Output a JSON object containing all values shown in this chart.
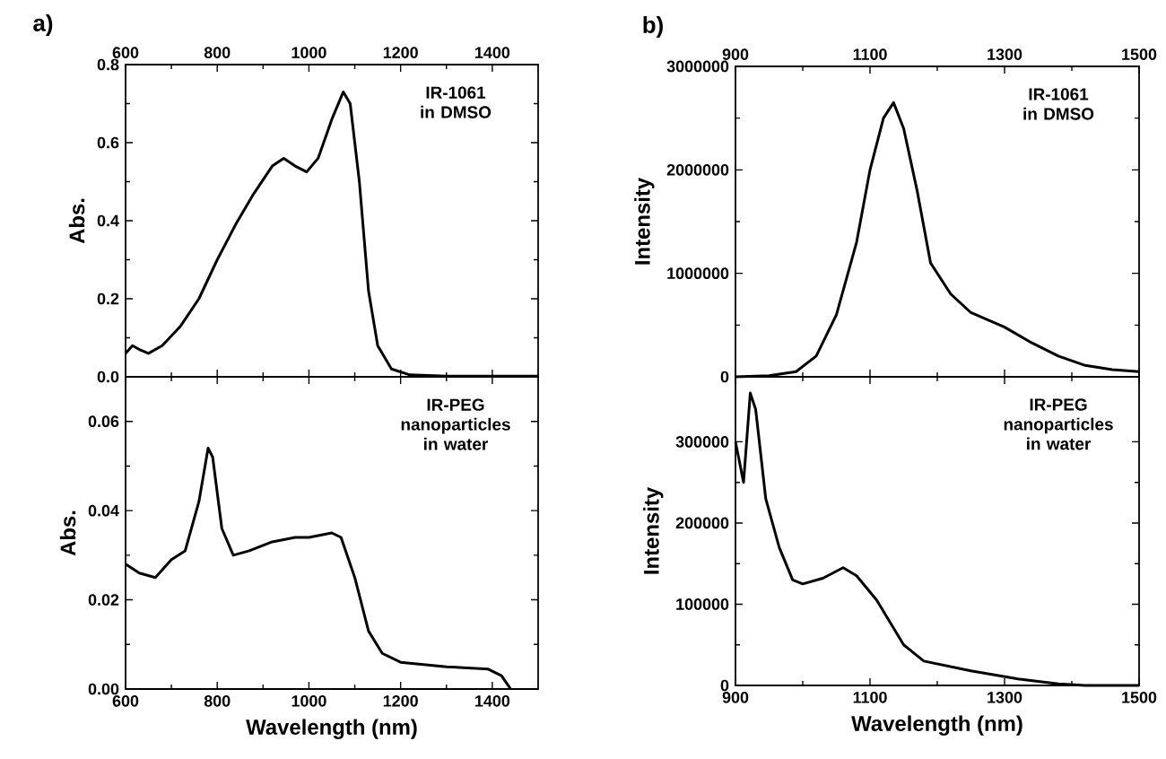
{
  "chart_data": [
    {
      "type": "line",
      "title": "a)",
      "ylabel": "Abs.",
      "annotations": [
        "IR-1061 in DMSO"
      ],
      "color": "#000000",
      "xlim": [
        600,
        1500
      ],
      "xticks": [
        600,
        800,
        1000,
        1200,
        1400
      ],
      "ylim": [
        0,
        0.8
      ],
      "yticks": [
        {
          "value": 0,
          "label": "0.0"
        },
        0.2,
        0.4,
        0.6,
        0.8
      ],
      "x": [
        600,
        615,
        630,
        650,
        680,
        720,
        760,
        800,
        840,
        880,
        920,
        945,
        970,
        995,
        1020,
        1050,
        1075,
        1090,
        1110,
        1130,
        1150,
        1180,
        1220,
        1300,
        1500
      ],
      "values": [
        0.06,
        0.08,
        0.07,
        0.06,
        0.08,
        0.13,
        0.2,
        0.3,
        0.39,
        0.47,
        0.54,
        0.56,
        0.54,
        0.525,
        0.56,
        0.66,
        0.73,
        0.7,
        0.5,
        0.22,
        0.08,
        0.02,
        0.005,
        0.002,
        0.002
      ]
    },
    {
      "type": "line",
      "xlabel": "Wavelength (nm)",
      "ylabel": "Abs.",
      "annotations": [
        "IR-PEG nanoparticles in water"
      ],
      "color": "#000000",
      "xlim": [
        600,
        1500
      ],
      "xticks": [
        600,
        800,
        1000,
        1200,
        1400
      ],
      "ylim": [
        0,
        0.07
      ],
      "yticks": [
        {
          "value": 0,
          "label": "0.00"
        },
        {
          "value": 0.02,
          "label": "0.02"
        },
        {
          "value": 0.04,
          "label": "0.04"
        },
        {
          "value": 0.06,
          "label": "0.06"
        }
      ],
      "x": [
        600,
        630,
        665,
        700,
        730,
        760,
        780,
        790,
        810,
        835,
        870,
        920,
        970,
        1000,
        1050,
        1070,
        1100,
        1130,
        1160,
        1200,
        1300,
        1390,
        1420,
        1440
      ],
      "values": [
        0.028,
        0.026,
        0.025,
        0.029,
        0.031,
        0.042,
        0.054,
        0.052,
        0.036,
        0.03,
        0.031,
        0.033,
        0.034,
        0.034,
        0.035,
        0.034,
        0.025,
        0.013,
        0.008,
        0.006,
        0.005,
        0.0045,
        0.003,
        0.0
      ]
    },
    {
      "type": "line",
      "title": "b)",
      "ylabel": "Intensity",
      "annotations": [
        "IR-1061 in DMSO"
      ],
      "color": "#000000",
      "xlim": [
        900,
        1500
      ],
      "xticks": [
        900,
        1100,
        1300,
        1500
      ],
      "ylim": [
        0,
        3000000
      ],
      "yticks": [
        0,
        1000000,
        2000000,
        3000000
      ],
      "x": [
        900,
        950,
        990,
        1020,
        1050,
        1080,
        1100,
        1120,
        1135,
        1150,
        1170,
        1190,
        1220,
        1250,
        1300,
        1340,
        1380,
        1420,
        1460,
        1500
      ],
      "values": [
        0,
        10000,
        50000,
        200000,
        600000,
        1300000,
        2000000,
        2500000,
        2650000,
        2400000,
        1800000,
        1100000,
        800000,
        620000,
        480000,
        330000,
        200000,
        110000,
        70000,
        50000
      ]
    },
    {
      "type": "line",
      "xlabel": "Wavelength (nm)",
      "ylabel": "Intensity",
      "annotations": [
        "IR-PEG nanoparticles in water"
      ],
      "color": "#000000",
      "xlim": [
        900,
        1500
      ],
      "xticks": [
        900,
        1100,
        1300,
        1500
      ],
      "ylim": [
        0,
        380000
      ],
      "yticks": [
        0,
        100000,
        200000,
        300000
      ],
      "x": [
        900,
        912,
        922,
        930,
        945,
        965,
        985,
        1000,
        1030,
        1060,
        1080,
        1110,
        1150,
        1180,
        1250,
        1320,
        1380,
        1420,
        1500
      ],
      "values": [
        300000,
        250000,
        360000,
        340000,
        230000,
        170000,
        130000,
        125000,
        132000,
        145000,
        135000,
        105000,
        50000,
        30000,
        18000,
        8000,
        2000,
        0,
        0
      ]
    }
  ]
}
